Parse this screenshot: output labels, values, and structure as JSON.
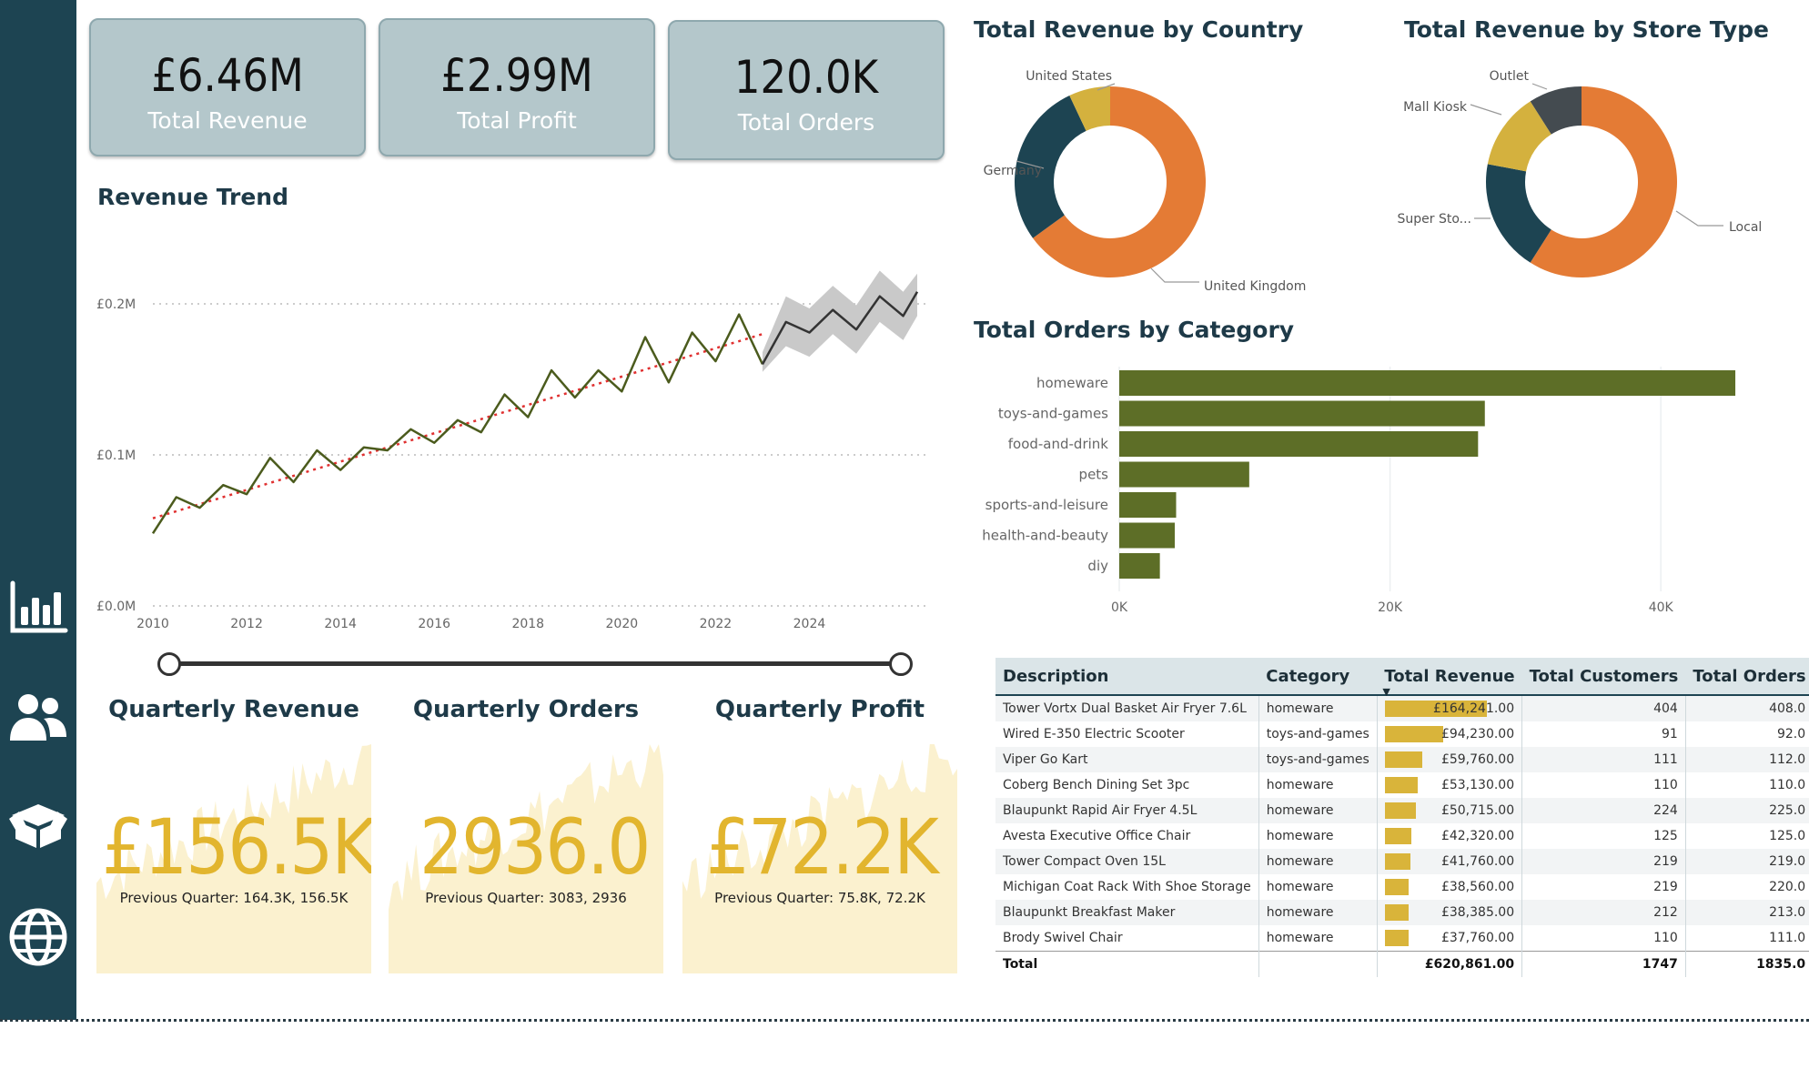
{
  "kpis": [
    {
      "value": "£6.46M",
      "label": "Total Revenue"
    },
    {
      "value": "£2.99M",
      "label": "Total Profit"
    },
    {
      "value": "120.0K",
      "label": "Total Orders"
    }
  ],
  "nav": {
    "items": [
      {
        "icon": "bar-chart-icon"
      },
      {
        "icon": "users-icon"
      },
      {
        "icon": "product-box-icon"
      },
      {
        "icon": "globe-icon"
      }
    ]
  },
  "colors": {
    "sidebar": "#1d4452",
    "orange": "#e47b35",
    "navy": "#1d4452",
    "gold": "#d4b13e",
    "gray": "#444b50",
    "olive": "#5d6e27",
    "line": "#4b5b1d",
    "trend": "#e03030"
  },
  "revenue_trend": {
    "title": "Revenue Trend",
    "chart_data": {
      "type": "line",
      "title": "Revenue Trend",
      "ylabel": "",
      "xlabel": "",
      "x_ticks": [
        "2010",
        "2012",
        "2014",
        "2016",
        "2018",
        "2020",
        "2022",
        "2024"
      ],
      "y_ticks": [
        "£0.0M",
        "£0.1M",
        "£0.2M"
      ],
      "xlim": [
        2010,
        2026.3
      ],
      "ylim": [
        0,
        0.2
      ],
      "series": [
        {
          "x": [
            2010.0,
            2010.5,
            2011.0,
            2011.5,
            2012.0,
            2012.5,
            2013.0,
            2013.5,
            2014.0,
            2014.5,
            2015.0,
            2015.5,
            2016.0,
            2016.5,
            2017.0,
            2017.5,
            2018.0,
            2018.5,
            2019.0,
            2019.5,
            2020.0,
            2020.5,
            2021.0,
            2021.5,
            2022.0,
            2022.5,
            2023.0
          ],
          "y": [
            0.048,
            0.072,
            0.065,
            0.08,
            0.074,
            0.098,
            0.082,
            0.103,
            0.09,
            0.105,
            0.103,
            0.117,
            0.108,
            0.123,
            0.115,
            0.14,
            0.125,
            0.156,
            0.138,
            0.156,
            0.142,
            0.178,
            0.148,
            0.181,
            0.162,
            0.193,
            0.16
          ]
        },
        {
          "x": [
            2023.0,
            2023.5,
            2024.0,
            2024.5,
            2025.0,
            2025.5,
            2026.0,
            2026.3
          ],
          "y": [
            0.16,
            0.188,
            0.181,
            0.196,
            0.183,
            0.205,
            0.192,
            0.208
          ]
        }
      ],
      "forecast_band": {
        "x": [
          2023.0,
          2023.5,
          2024.0,
          2024.5,
          2025.0,
          2025.5,
          2026.0,
          2026.3
        ],
        "lower": [
          0.155,
          0.172,
          0.165,
          0.18,
          0.167,
          0.188,
          0.176,
          0.192
        ],
        "upper": [
          0.168,
          0.205,
          0.197,
          0.212,
          0.199,
          0.222,
          0.208,
          0.22
        ]
      },
      "trendline": {
        "x": [
          2010.0,
          2023.0
        ],
        "y": [
          0.058,
          0.18
        ]
      }
    }
  },
  "quarterly": [
    {
      "title": "Quarterly Revenue",
      "value": "£156.5K",
      "previous": "Previous Quarter: 164.3K, 156.5K"
    },
    {
      "title": "Quarterly Orders",
      "value": "2936.0",
      "previous": "Previous Quarter: 3083, 2936"
    },
    {
      "title": "Quarterly Profit",
      "value": "£72.2K",
      "previous": "Previous Quarter: 75.8K, 72.2K"
    }
  ],
  "country_chart": {
    "title": "Total Revenue by Country",
    "chart_data": {
      "type": "pie",
      "donut": true,
      "labels": [
        "United Kingdom",
        "Germany",
        "United States"
      ],
      "values": [
        65.0,
        28.0,
        7.0
      ],
      "colors": [
        "#e47b35",
        "#1d4452",
        "#d4b13e"
      ]
    }
  },
  "store_chart": {
    "title": "Total Revenue by Store Type",
    "chart_data": {
      "type": "pie",
      "donut": true,
      "labels": [
        "Local",
        "Super Sto...",
        "Mall Kiosk",
        "Outlet"
      ],
      "values": [
        59.0,
        19.0,
        13.0,
        9.0
      ],
      "colors": [
        "#e47b35",
        "#1d4452",
        "#d4b13e",
        "#444b50"
      ]
    }
  },
  "category_chart": {
    "title": "Total Orders by Category",
    "chart_data": {
      "type": "bar",
      "orientation": "horizontal",
      "categories": [
        "homeware",
        "toys-and-games",
        "food-and-drink",
        "pets",
        "sports-and-leisure",
        "health-and-beauty",
        "diy"
      ],
      "values": [
        45500,
        27000,
        26500,
        9600,
        4200,
        4100,
        3000
      ],
      "x_ticks": [
        "0K",
        "20K",
        "40K"
      ],
      "xlim": [
        0,
        50000
      ]
    }
  },
  "table": {
    "columns": [
      "Description",
      "Category",
      "Total Revenue",
      "Total Customers",
      "Total Orders"
    ],
    "sort_indicator": "▼",
    "rows": [
      {
        "desc": "Tower Vortx Dual Basket Air Fryer 7.6L",
        "cat": "homeware",
        "rev": "£164,241.00",
        "rev_frac": 1.0,
        "cust": "404",
        "orders": "408.0"
      },
      {
        "desc": "Wired E-350 Electric Scooter",
        "cat": "toys-and-games",
        "rev": "£94,230.00",
        "rev_frac": 0.574,
        "cust": "91",
        "orders": "92.0"
      },
      {
        "desc": "Viper Go Kart",
        "cat": "toys-and-games",
        "rev": "£59,760.00",
        "rev_frac": 0.364,
        "cust": "111",
        "orders": "112.0"
      },
      {
        "desc": "Coberg Bench Dining Set 3pc",
        "cat": "homeware",
        "rev": "£53,130.00",
        "rev_frac": 0.323,
        "cust": "110",
        "orders": "110.0"
      },
      {
        "desc": "Blaupunkt Rapid Air Fryer 4.5L",
        "cat": "homeware",
        "rev": "£50,715.00",
        "rev_frac": 0.309,
        "cust": "224",
        "orders": "225.0"
      },
      {
        "desc": "Avesta Executive Office Chair",
        "cat": "homeware",
        "rev": "£42,320.00",
        "rev_frac": 0.258,
        "cust": "125",
        "orders": "125.0"
      },
      {
        "desc": "Tower Compact Oven 15L",
        "cat": "homeware",
        "rev": "£41,760.00",
        "rev_frac": 0.254,
        "cust": "219",
        "orders": "219.0"
      },
      {
        "desc": "Michigan Coat Rack With Shoe Storage",
        "cat": "homeware",
        "rev": "£38,560.00",
        "rev_frac": 0.235,
        "cust": "219",
        "orders": "220.0"
      },
      {
        "desc": "Blaupunkt Breakfast Maker",
        "cat": "homeware",
        "rev": "£38,385.00",
        "rev_frac": 0.234,
        "cust": "212",
        "orders": "213.0"
      },
      {
        "desc": "Brody Swivel Chair",
        "cat": "homeware",
        "rev": "£37,760.00",
        "rev_frac": 0.23,
        "cust": "110",
        "orders": "111.0"
      }
    ],
    "total": {
      "label": "Total",
      "rev": "£620,861.00",
      "cust": "1747",
      "orders": "1835.0"
    }
  }
}
